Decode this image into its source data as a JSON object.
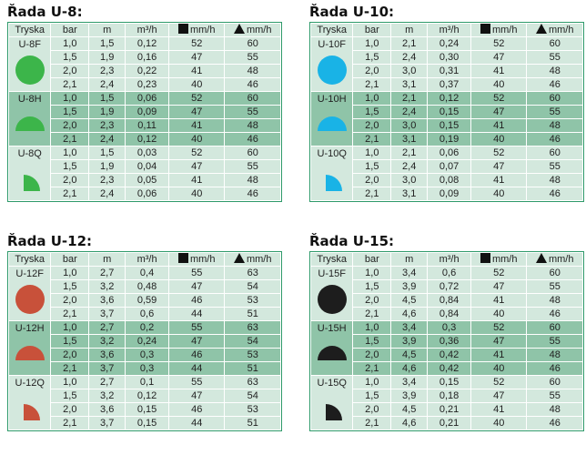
{
  "headers": {
    "tryska": "Tryska",
    "bar": "bar",
    "m": "m",
    "flow": "m³/h",
    "sq": "mm/h",
    "tri": "mm/h"
  },
  "sections": [
    {
      "title": "Řada U-8:",
      "color": "#3cb54a",
      "groups": [
        {
          "label": "U-8F",
          "shape": "circle",
          "rows": [
            [
              "1,0",
              "1,5",
              "0,12",
              "52",
              "60"
            ],
            [
              "1,5",
              "1,9",
              "0,16",
              "47",
              "55"
            ],
            [
              "2,0",
              "2,3",
              "0,22",
              "41",
              "48"
            ],
            [
              "2,1",
              "2,4",
              "0,23",
              "40",
              "46"
            ]
          ]
        },
        {
          "label": "U-8H",
          "shape": "half",
          "rows": [
            [
              "1,0",
              "1,5",
              "0,06",
              "52",
              "60"
            ],
            [
              "1,5",
              "1,9",
              "0,09",
              "47",
              "55"
            ],
            [
              "2,0",
              "2,3",
              "0,11",
              "41",
              "48"
            ],
            [
              "2,1",
              "2,4",
              "0,12",
              "40",
              "46"
            ]
          ]
        },
        {
          "label": "U-8Q",
          "shape": "quarter",
          "rows": [
            [
              "1,0",
              "1,5",
              "0,03",
              "52",
              "60"
            ],
            [
              "1,5",
              "1,9",
              "0,04",
              "47",
              "55"
            ],
            [
              "2,0",
              "2,3",
              "0,05",
              "41",
              "48"
            ],
            [
              "2,1",
              "2,4",
              "0,06",
              "40",
              "46"
            ]
          ]
        }
      ]
    },
    {
      "title": "Řada U-10:",
      "color": "#19b3e6",
      "groups": [
        {
          "label": "U-10F",
          "shape": "circle",
          "rows": [
            [
              "1,0",
              "2,1",
              "0,24",
              "52",
              "60"
            ],
            [
              "1,5",
              "2,4",
              "0,30",
              "47",
              "55"
            ],
            [
              "2,0",
              "3,0",
              "0,31",
              "41",
              "48"
            ],
            [
              "2,1",
              "3,1",
              "0,37",
              "40",
              "46"
            ]
          ]
        },
        {
          "label": "U-10H",
          "shape": "half",
          "rows": [
            [
              "1,0",
              "2,1",
              "0,12",
              "52",
              "60"
            ],
            [
              "1,5",
              "2,4",
              "0,15",
              "47",
              "55"
            ],
            [
              "2,0",
              "3,0",
              "0,15",
              "41",
              "48"
            ],
            [
              "2,1",
              "3,1",
              "0,19",
              "40",
              "46"
            ]
          ]
        },
        {
          "label": "U-10Q",
          "shape": "quarter",
          "rows": [
            [
              "1,0",
              "2,1",
              "0,06",
              "52",
              "60"
            ],
            [
              "1,5",
              "2,4",
              "0,07",
              "47",
              "55"
            ],
            [
              "2,0",
              "3,0",
              "0,08",
              "41",
              "48"
            ],
            [
              "2,1",
              "3,1",
              "0,09",
              "40",
              "46"
            ]
          ]
        }
      ]
    },
    {
      "title": "Řada U-12:",
      "color": "#c8513a",
      "groups": [
        {
          "label": "U-12F",
          "shape": "circle",
          "rows": [
            [
              "1,0",
              "2,7",
              "0,4",
              "55",
              "63"
            ],
            [
              "1,5",
              "3,2",
              "0,48",
              "47",
              "54"
            ],
            [
              "2,0",
              "3,6",
              "0,59",
              "46",
              "53"
            ],
            [
              "2,1",
              "3,7",
              "0,6",
              "44",
              "51"
            ]
          ]
        },
        {
          "label": "U-12H",
          "shape": "half",
          "rows": [
            [
              "1,0",
              "2,7",
              "0,2",
              "55",
              "63"
            ],
            [
              "1,5",
              "3,2",
              "0,24",
              "47",
              "54"
            ],
            [
              "2,0",
              "3,6",
              "0,3",
              "46",
              "53"
            ],
            [
              "2,1",
              "3,7",
              "0,3",
              "44",
              "51"
            ]
          ]
        },
        {
          "label": "U-12Q",
          "shape": "quarter",
          "rows": [
            [
              "1,0",
              "2,7",
              "0,1",
              "55",
              "63"
            ],
            [
              "1,5",
              "3,2",
              "0,12",
              "47",
              "54"
            ],
            [
              "2,0",
              "3,6",
              "0,15",
              "46",
              "53"
            ],
            [
              "2,1",
              "3,7",
              "0,15",
              "44",
              "51"
            ]
          ]
        }
      ]
    },
    {
      "title": "Řada U-15:",
      "color": "#1d1d1d",
      "groups": [
        {
          "label": "U-15F",
          "shape": "circle",
          "rows": [
            [
              "1,0",
              "3,4",
              "0,6",
              "52",
              "60"
            ],
            [
              "1,5",
              "3,9",
              "0,72",
              "47",
              "55"
            ],
            [
              "2,0",
              "4,5",
              "0,84",
              "41",
              "48"
            ],
            [
              "2,1",
              "4,6",
              "0,84",
              "40",
              "46"
            ]
          ]
        },
        {
          "label": "U-15H",
          "shape": "half",
          "rows": [
            [
              "1,0",
              "3,4",
              "0,3",
              "52",
              "60"
            ],
            [
              "1,5",
              "3,9",
              "0,36",
              "47",
              "55"
            ],
            [
              "2,0",
              "4,5",
              "0,42",
              "41",
              "48"
            ],
            [
              "2,1",
              "4,6",
              "0,42",
              "40",
              "46"
            ]
          ]
        },
        {
          "label": "U-15Q",
          "shape": "quarter",
          "rows": [
            [
              "1,0",
              "3,4",
              "0,15",
              "52",
              "60"
            ],
            [
              "1,5",
              "3,9",
              "0,18",
              "47",
              "55"
            ],
            [
              "2,0",
              "4,5",
              "0,21",
              "41",
              "48"
            ],
            [
              "2,1",
              "4,6",
              "0,21",
              "40",
              "46"
            ]
          ]
        }
      ]
    }
  ]
}
